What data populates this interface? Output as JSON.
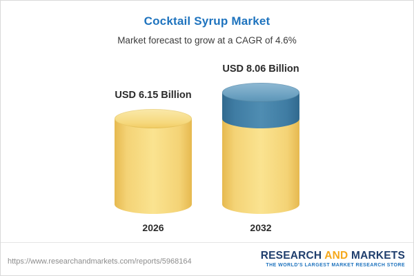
{
  "header": {
    "title": "Cocktail Syrup Market",
    "subtitle": "Market forecast to grow at a CAGR of 4.6%"
  },
  "chart_data": {
    "type": "bar",
    "bar_style": "cylinder",
    "title": "Cocktail Syrup Market",
    "subtitle": "Market forecast to grow at a CAGR of 4.6%",
    "cagr_percent": 4.6,
    "unit": "USD Billion",
    "categories": [
      "2026",
      "2032"
    ],
    "values": [
      6.15,
      8.06
    ],
    "value_labels": [
      "USD 6.15 Billion",
      "USD 8.06 Billion"
    ],
    "ylim": [
      0,
      8.06
    ],
    "legend": "none",
    "grid": false,
    "colors": {
      "bar_base": "#F5D16E",
      "bar_growth_segment": "#4080A8",
      "title": "#1E73BE",
      "label_text": "#2B2B2B"
    },
    "notes": "Growth segment (2032 value minus 2026 value) is drawn as a blue top section on the 2032 cylinder"
  },
  "footer": {
    "url": "https://www.researchandmarkets.com/reports/5968164",
    "logo_part1": "RESEARCH",
    "logo_part2": "AND",
    "logo_part3": "MARKETS",
    "tagline": "THE WORLD'S LARGEST MARKET RESEARCH STORE"
  }
}
